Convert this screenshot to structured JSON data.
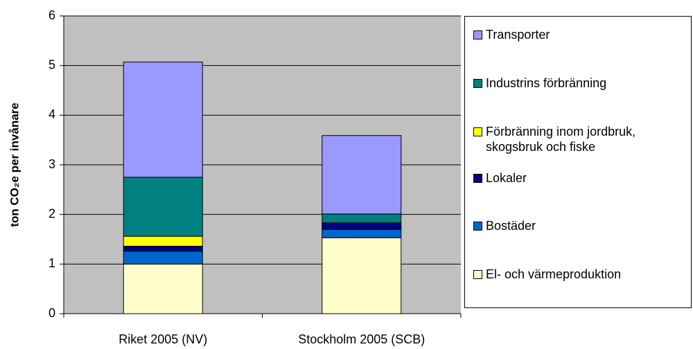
{
  "chart_data": {
    "type": "stacked-bar",
    "ylabel": "ton CO₂e per invånare",
    "categories": [
      "Riket 2005 (NV)",
      "Stockholm 2005 (SCB)"
    ],
    "series": [
      {
        "name": "El- och värmeproduktion",
        "color": "#ffffcc",
        "values": [
          1.0,
          1.53
        ]
      },
      {
        "name": "Bostäder",
        "color": "#0066cc",
        "values": [
          0.26,
          0.17
        ]
      },
      {
        "name": "Lokaler",
        "color": "#000080",
        "values": [
          0.1,
          0.13
        ]
      },
      {
        "name": "Förbränning inom jordbruk, skogsbruk och fiske",
        "color": "#ffff00",
        "values": [
          0.2,
          0.0
        ]
      },
      {
        "name": "Industrins förbränning",
        "color": "#008080",
        "values": [
          1.19,
          0.18
        ]
      },
      {
        "name": "Transporter",
        "color": "#9999ff",
        "values": [
          2.32,
          1.58
        ]
      }
    ],
    "ylim": [
      0,
      6
    ],
    "yticks": [
      0,
      1,
      2,
      3,
      4,
      5,
      6
    ],
    "grid": true
  }
}
